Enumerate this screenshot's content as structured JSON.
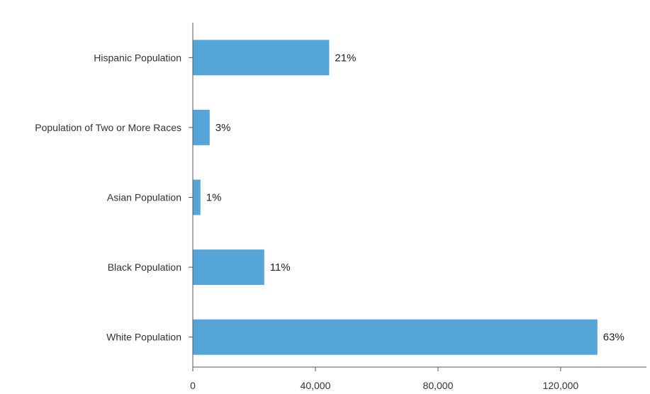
{
  "chart_data": {
    "type": "bar",
    "orientation": "horizontal",
    "categories": [
      "Hispanic Population",
      "Population of Two or More Races",
      "Asian Population",
      "Black Population",
      "White Population"
    ],
    "values": [
      44500,
      5500,
      2500,
      23300,
      132000
    ],
    "data_labels": [
      "21%",
      "3%",
      "1%",
      "11%",
      "63%"
    ],
    "xlim": [
      0,
      148000
    ],
    "x_ticks": [
      0,
      40000,
      80000,
      120000
    ],
    "x_tick_labels": [
      "0",
      "40,000",
      "80,000",
      "120,000"
    ],
    "bar_color": "#56a5d8",
    "axis_color": "#555555",
    "grid": false,
    "legend": "none"
  }
}
